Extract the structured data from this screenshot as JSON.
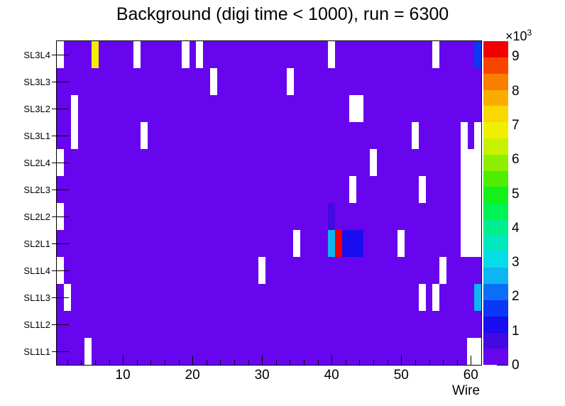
{
  "title": "Background (digi time < 1000), run = 6300",
  "axis_labels": {
    "x": "Wire",
    "z_scale_prefix": "×10",
    "z_scale_exponent": "3"
  },
  "colors": {
    "canvas_background": "#ffffff",
    "frame_line": "#000000",
    "text": "#000000",
    "empty_bin": "#ffffff"
  },
  "chart_data": {
    "type": "heatmap",
    "title": "Background (digi time < 1000), run = 6300",
    "xlabel": "Wire",
    "x_range": [
      0.5,
      61.5
    ],
    "x_major_ticks": [
      10,
      20,
      30,
      40,
      50,
      60
    ],
    "x_minor_tick_step": 2,
    "y_categories_top_to_bottom": [
      "SL3L4",
      "SL3L3",
      "SL3L2",
      "SL3L1",
      "SL2L4",
      "SL2L3",
      "SL2L2",
      "SL2L1",
      "SL1L4",
      "SL1L3",
      "SL1L2",
      "SL1L1"
    ],
    "z_ticks_thousands": [
      0,
      1,
      2,
      3,
      4,
      5,
      6,
      7,
      8,
      9
    ],
    "z_max_thousands": 9.44,
    "z_scale_label": "×10³",
    "background_value_thousands": 0,
    "legend_position": "right-palette-bar",
    "grid": false,
    "palette_colors_low_to_high": [
      "#6605EE",
      "#4409E2",
      "#1A0DF0",
      "#0B38F5",
      "#0B6EF7",
      "#0FB4F2",
      "#05DCE8",
      "#00E8C0",
      "#00EE8E",
      "#00F254",
      "#12F21A",
      "#4FEE00",
      "#8EEE00",
      "#C6F200",
      "#F2EE00",
      "#F7D800",
      "#FAAD00",
      "#FA7E00",
      "#F74500",
      "#F20000"
    ],
    "empty_bins": [
      {
        "layer": "SL3L4",
        "wires": [
          1,
          12,
          19,
          21,
          40,
          55
        ]
      },
      {
        "layer": "SL3L3",
        "wires": [
          23,
          34
        ]
      },
      {
        "layer": "SL3L2",
        "wires": [
          3,
          43,
          44
        ]
      },
      {
        "layer": "SL3L1",
        "wires": [
          3,
          13,
          52,
          59,
          61
        ]
      },
      {
        "layer": "SL2L4",
        "wires": [
          1,
          46,
          59,
          60,
          61
        ]
      },
      {
        "layer": "SL2L3",
        "wires": [
          43,
          53,
          59,
          60,
          61
        ]
      },
      {
        "layer": "SL2L2",
        "wires": [
          1,
          59,
          60,
          61
        ]
      },
      {
        "layer": "SL2L1",
        "wires": [
          35,
          50,
          59,
          60,
          61
        ]
      },
      {
        "layer": "SL1L4",
        "wires": [
          1,
          30,
          56
        ]
      },
      {
        "layer": "SL1L3",
        "wires": [
          2,
          53,
          55
        ]
      },
      {
        "layer": "SL1L2",
        "wires": []
      },
      {
        "layer": "SL1L1",
        "wires": [
          5,
          60,
          61
        ]
      }
    ],
    "hot_bins": [
      {
        "layer": "SL3L4",
        "wire": 6,
        "value_thousands": 7.0
      },
      {
        "layer": "SL3L4",
        "wire": 61,
        "value_thousands": 1.6
      },
      {
        "layer": "SL2L2",
        "wire": 40,
        "value_thousands": 0.7
      },
      {
        "layer": "SL2L1",
        "wire": 40,
        "value_thousands": 2.6
      },
      {
        "layer": "SL2L1",
        "wire": 41,
        "value_thousands": 9.4
      },
      {
        "layer": "SL2L1",
        "wire": 42,
        "value_thousands": 1.2
      },
      {
        "layer": "SL2L1",
        "wire": 43,
        "value_thousands": 1.2
      },
      {
        "layer": "SL2L1",
        "wire": 44,
        "value_thousands": 1.2
      },
      {
        "layer": "SL1L3",
        "wire": 61,
        "value_thousands": 2.6
      }
    ]
  }
}
